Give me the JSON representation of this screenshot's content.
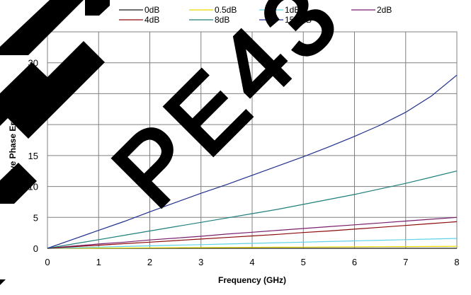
{
  "chart_data": {
    "type": "line",
    "title": "",
    "xlabel": "Frequency (GHz)",
    "ylabel": "Relative Phase Error (Deg)",
    "xlim": [
      0,
      8
    ],
    "ylim": [
      0,
      35
    ],
    "grid": true,
    "legend_position": "top",
    "x_ticks": [
      "0",
      "1",
      "2",
      "3",
      "4",
      "5",
      "6",
      "7",
      "8"
    ],
    "y_ticks": [
      "0",
      "5",
      "10",
      "15",
      "20",
      "25",
      "30",
      "35"
    ],
    "x": [
      0,
      0.5,
      1,
      1.5,
      2,
      2.5,
      3,
      3.5,
      4,
      4.5,
      5,
      5.5,
      6,
      6.5,
      7,
      7.5,
      8
    ],
    "series": [
      {
        "name": "0dB",
        "color": "#1a1a1a",
        "values": [
          0,
          0,
          0,
          0,
          0,
          0,
          0,
          0,
          0,
          0,
          0,
          0,
          0,
          0,
          0,
          0,
          0
        ]
      },
      {
        "name": "0.5dB",
        "color": "#e6d800",
        "values": [
          0,
          0.02,
          0.04,
          0.06,
          0.08,
          0.1,
          0.12,
          0.14,
          0.16,
          0.18,
          0.2,
          0.22,
          0.24,
          0.26,
          0.28,
          0.3,
          0.32
        ]
      },
      {
        "name": "1dB",
        "color": "#5fd3e6",
        "values": [
          0,
          0.1,
          0.2,
          0.3,
          0.4,
          0.5,
          0.6,
          0.7,
          0.8,
          0.9,
          1.0,
          1.1,
          1.2,
          1.3,
          1.4,
          1.5,
          1.6
        ]
      },
      {
        "name": "2dB",
        "color": "#7a1f6e",
        "values": [
          0,
          0.35,
          0.7,
          1.0,
          1.35,
          1.65,
          1.95,
          2.3,
          2.6,
          2.9,
          3.2,
          3.5,
          3.8,
          4.1,
          4.4,
          4.7,
          5.0
        ]
      },
      {
        "name": "4dB",
        "color": "#8b0a0a",
        "values": [
          0,
          0.25,
          0.5,
          0.75,
          1.0,
          1.25,
          1.5,
          1.75,
          2.0,
          2.25,
          2.55,
          2.8,
          3.1,
          3.4,
          3.7,
          4.0,
          4.3
        ]
      },
      {
        "name": "8dB",
        "color": "#1f7f7a",
        "values": [
          0,
          0.7,
          1.4,
          2.1,
          2.8,
          3.5,
          4.2,
          4.9,
          5.6,
          6.3,
          7.1,
          7.9,
          8.7,
          9.6,
          10.5,
          11.5,
          12.5
        ]
      },
      {
        "name": "15.5dB",
        "color": "#1f2f8f",
        "values": [
          0,
          1.45,
          2.9,
          4.35,
          5.9,
          7.4,
          8.9,
          10.3,
          11.8,
          13.3,
          14.8,
          16.4,
          18.1,
          19.9,
          22.0,
          24.6,
          28.0
        ]
      }
    ]
  },
  "watermark": {
    "text": "PE43"
  }
}
